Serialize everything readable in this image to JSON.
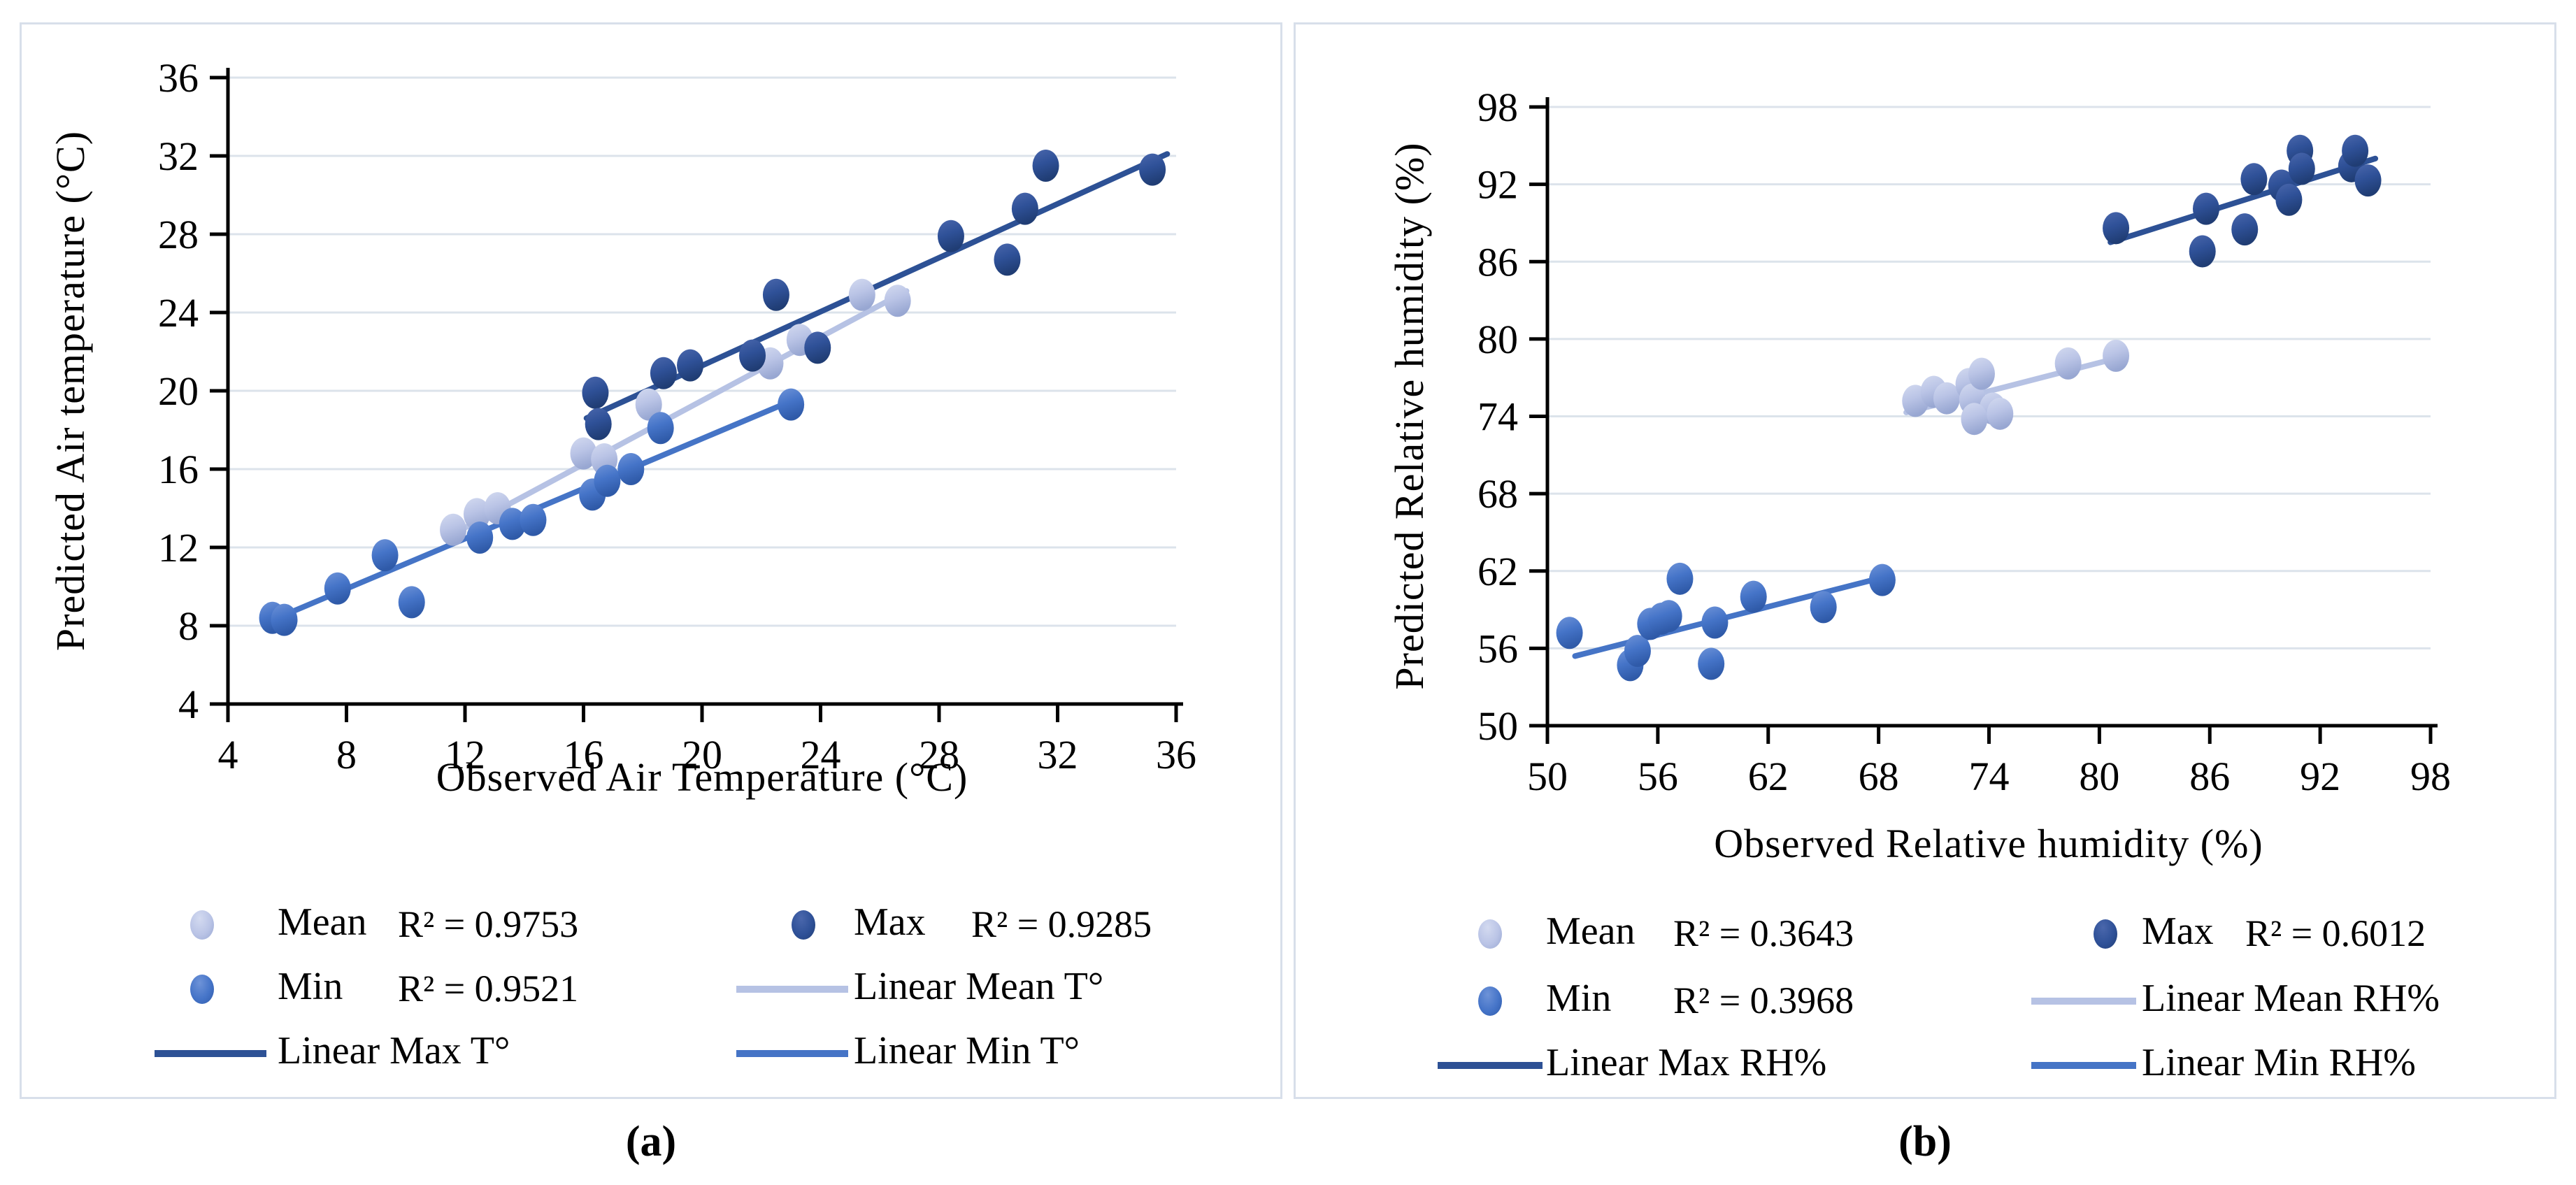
{
  "panels": [
    {
      "caption": "(a)"
    },
    {
      "caption": "(b)"
    }
  ],
  "colors": {
    "background": "#ffffff",
    "panel_border": "#d8dfea",
    "gridline": "#dce3eb",
    "axis": "#000000",
    "text": "#000000"
  },
  "chart_data": [
    {
      "type": "scatter",
      "panel": "a",
      "xlabel": "Observed Air Temperature (°C)",
      "ylabel": "Predicted Air temperature (°C)",
      "xlim": [
        4,
        36
      ],
      "ylim": [
        4,
        36
      ],
      "xticks": [
        4,
        8,
        12,
        16,
        20,
        24,
        28,
        32,
        36
      ],
      "yticks": [
        4,
        8,
        12,
        16,
        20,
        24,
        28,
        32,
        36
      ],
      "grid": "horizontal",
      "series": [
        {
          "name": "Mean",
          "fill_light": "#d3daf0",
          "fill": "#bac4e6",
          "fill_dark": "#98a7d2",
          "line_color": "#b6c2e4",
          "r2": "R² = 0.9753",
          "points": [
            [
              11.6,
              12.9
            ],
            [
              12.4,
              13.7
            ],
            [
              13.1,
              14.0
            ],
            [
              16.0,
              16.8
            ],
            [
              16.7,
              16.5
            ],
            [
              18.2,
              19.3
            ],
            [
              22.3,
              21.4
            ],
            [
              23.3,
              22.6
            ],
            [
              25.4,
              24.9
            ],
            [
              26.6,
              24.6
            ]
          ],
          "trend": [
            11.5,
            12.6,
            26.9,
            25.1
          ]
        },
        {
          "name": "Min",
          "fill_light": "#6e93d8",
          "fill": "#4574c8",
          "fill_dark": "#2f5aa8",
          "line_color": "#4574c6",
          "r2": "R² = 0.9521",
          "points": [
            [
              5.5,
              8.4
            ],
            [
              5.9,
              8.3
            ],
            [
              7.7,
              9.9
            ],
            [
              9.3,
              11.6
            ],
            [
              10.2,
              9.2
            ],
            [
              12.5,
              12.5
            ],
            [
              13.6,
              13.2
            ],
            [
              14.3,
              13.4
            ],
            [
              16.3,
              14.7
            ],
            [
              16.8,
              15.4
            ],
            [
              17.6,
              16.0
            ],
            [
              18.6,
              18.1
            ],
            [
              23.0,
              19.3
            ]
          ],
          "trend": [
            5.2,
            8.1,
            23.2,
            19.6
          ]
        },
        {
          "name": "Max",
          "fill_light": "#4a67ac",
          "fill": "#2f5198",
          "fill_dark": "#203d74",
          "line_color": "#2d5195",
          "r2": "R² = 0.9285",
          "points": [
            [
              16.4,
              19.9
            ],
            [
              16.5,
              18.3
            ],
            [
              18.7,
              20.9
            ],
            [
              19.6,
              21.3
            ],
            [
              21.7,
              21.8
            ],
            [
              22.5,
              24.9
            ],
            [
              23.9,
              22.2
            ],
            [
              28.4,
              27.9
            ],
            [
              30.3,
              26.7
            ],
            [
              30.9,
              29.3
            ],
            [
              31.6,
              31.5
            ],
            [
              35.2,
              31.3
            ]
          ],
          "trend": [
            16.1,
            18.6,
            35.7,
            32.1
          ]
        }
      ],
      "legend": [
        {
          "label": "Mean",
          "series": "Mean",
          "marker": "dot",
          "r2": "R² = 0.9753",
          "row": 0,
          "col": 0
        },
        {
          "label": "Max",
          "series": "Max",
          "marker": "dot",
          "r2": "R² = 0.9285",
          "row": 0,
          "col": 1
        },
        {
          "label": "Min",
          "series": "Min",
          "marker": "dot",
          "r2": "R² = 0.9521",
          "row": 1,
          "col": 0
        },
        {
          "label": "Linear Mean T°",
          "series": "Mean",
          "marker": "line",
          "row": 1,
          "col": 1
        },
        {
          "label": "Linear Max T°",
          "series": "Max",
          "marker": "line",
          "row": 2,
          "col": 0
        },
        {
          "label": "Linear Min T°",
          "series": "Min",
          "marker": "line",
          "row": 2,
          "col": 1
        }
      ]
    },
    {
      "type": "scatter",
      "panel": "b",
      "xlabel": "Observed Relative humidity (%)",
      "ylabel": "Predicted Relative humidity (%)",
      "xlim": [
        50,
        98
      ],
      "ylim": [
        50,
        98
      ],
      "xticks": [
        50,
        56,
        62,
        68,
        74,
        80,
        86,
        92,
        98
      ],
      "yticks": [
        50,
        56,
        62,
        68,
        74,
        80,
        86,
        92,
        98
      ],
      "grid": "horizontal",
      "series": [
        {
          "name": "Mean",
          "fill_light": "#d3daf0",
          "fill": "#bac4e6",
          "fill_dark": "#98a7d2",
          "line_color": "#b6c2e4",
          "r2": "R² = 0.3643",
          "points": [
            [
              70.0,
              75.2
            ],
            [
              71.0,
              75.9
            ],
            [
              71.7,
              75.4
            ],
            [
              72.9,
              76.5
            ],
            [
              73.1,
              75.3
            ],
            [
              73.6,
              77.3
            ],
            [
              74.2,
              74.6
            ],
            [
              73.2,
              73.8
            ],
            [
              74.6,
              74.2
            ],
            [
              78.3,
              78.1
            ],
            [
              80.9,
              78.7
            ]
          ],
          "trend": [
            69.5,
            74.3,
            81.2,
            78.6
          ]
        },
        {
          "name": "Min",
          "fill_light": "#6e93d8",
          "fill": "#4574c8",
          "fill_dark": "#2f5aa8",
          "line_color": "#4574c6",
          "r2": "R² = 0.3968",
          "points": [
            [
              51.2,
              57.2
            ],
            [
              54.5,
              54.7
            ],
            [
              54.9,
              55.8
            ],
            [
              55.6,
              57.9
            ],
            [
              56.2,
              58.3
            ],
            [
              56.6,
              58.5
            ],
            [
              57.2,
              61.4
            ],
            [
              58.9,
              54.8
            ],
            [
              59.1,
              58.0
            ],
            [
              61.2,
              60.0
            ],
            [
              65.0,
              59.2
            ],
            [
              68.2,
              61.3
            ]
          ],
          "trend": [
            51.5,
            55.4,
            68.5,
            61.6
          ]
        },
        {
          "name": "Max",
          "fill_light": "#4a67ac",
          "fill": "#2f5198",
          "fill_dark": "#203d74",
          "line_color": "#2d5195",
          "r2": "R² = 0.6012",
          "points": [
            [
              80.9,
              88.6
            ],
            [
              85.6,
              86.8
            ],
            [
              85.8,
              90.1
            ],
            [
              87.9,
              88.5
            ],
            [
              88.4,
              92.4
            ],
            [
              89.9,
              91.9
            ],
            [
              90.3,
              90.8
            ],
            [
              90.9,
              94.6
            ],
            [
              91.0,
              93.2
            ],
            [
              93.7,
              93.4
            ],
            [
              93.9,
              94.6
            ],
            [
              94.6,
              92.3
            ]
          ],
          "trend": [
            80.6,
            87.5,
            95.0,
            94.0
          ]
        }
      ],
      "legend": [
        {
          "label": "Mean",
          "series": "Mean",
          "marker": "dot",
          "r2": "R² = 0.3643",
          "row": 0,
          "col": 0
        },
        {
          "label": "Max",
          "series": "Max",
          "marker": "dot",
          "r2": "R² = 0.6012",
          "row": 0,
          "col": 1
        },
        {
          "label": "Min",
          "series": "Min",
          "marker": "dot",
          "r2": "R² = 0.3968",
          "row": 1,
          "col": 0
        },
        {
          "label": "Linear Mean RH%",
          "series": "Mean",
          "marker": "line",
          "row": 1,
          "col": 1
        },
        {
          "label": "Linear Max RH%",
          "series": "Max",
          "marker": "line",
          "row": 2,
          "col": 0
        },
        {
          "label": "Linear Min RH%",
          "series": "Min",
          "marker": "line",
          "row": 2,
          "col": 1
        }
      ]
    }
  ]
}
